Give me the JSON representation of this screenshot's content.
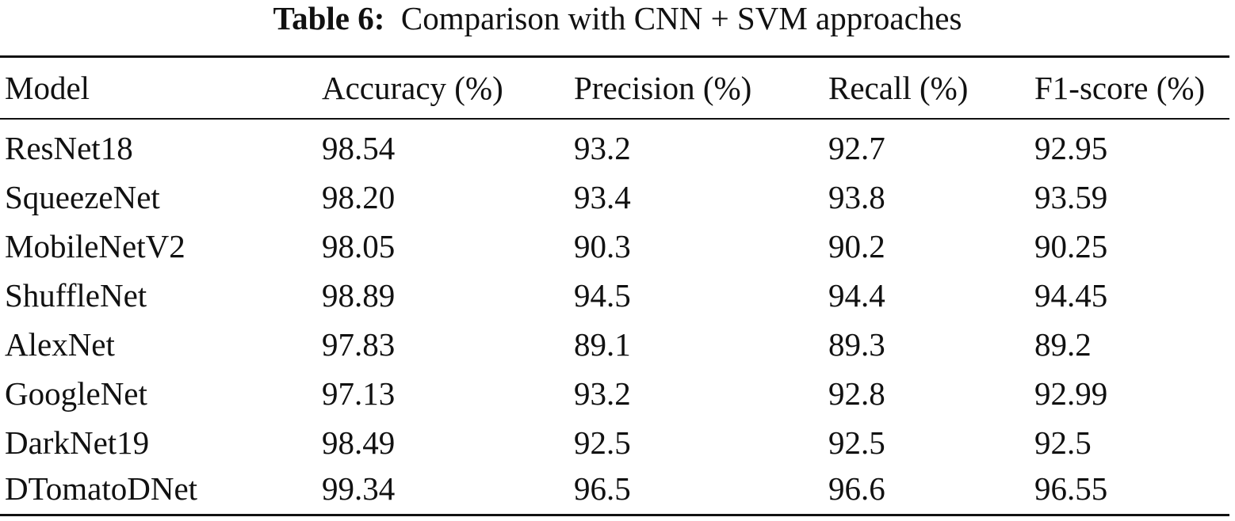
{
  "caption": {
    "label": "Table 6:",
    "text": "Comparison with CNN + SVM approaches"
  },
  "table": {
    "headers": [
      "Model",
      "Accuracy (%)",
      "Precision (%)",
      "Recall (%)",
      "F1-score (%)"
    ],
    "rows": [
      [
        "ResNet18",
        "98.54",
        "93.2",
        "92.7",
        "92.95"
      ],
      [
        "SqueezeNet",
        "98.20",
        "93.4",
        "93.8",
        "93.59"
      ],
      [
        "MobileNetV2",
        "98.05",
        "90.3",
        "90.2",
        "90.25"
      ],
      [
        "ShuffleNet",
        "98.89",
        "94.5",
        "94.4",
        "94.45"
      ],
      [
        "AlexNet",
        "97.83",
        "89.1",
        "89.3",
        "89.2"
      ],
      [
        "GoogleNet",
        "97.13",
        "93.2",
        "92.8",
        "92.99"
      ],
      [
        "DarkNet19",
        "98.49",
        "92.5",
        "92.5",
        "92.5"
      ],
      [
        "DTomatoDNet",
        "99.34",
        "96.5",
        "96.6",
        "96.55"
      ]
    ]
  }
}
